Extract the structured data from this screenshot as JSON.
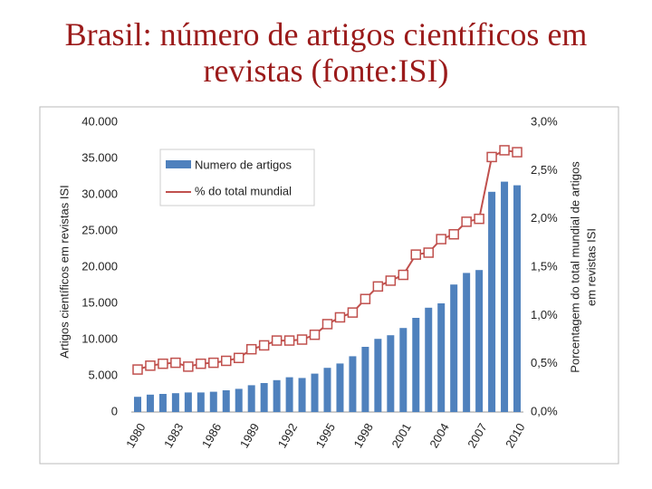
{
  "chart_data": {
    "type": "bar",
    "title": "Brasil: número de artigos científicos em revistas (fonte:ISI)",
    "ylabel": "Artigos científicos em revistas ISI",
    "y2label": [
      "Porcentagem do total mundial de artigos",
      "em revistas ISI"
    ],
    "categories": [
      "1980",
      null,
      null,
      "1983",
      null,
      null,
      "1986",
      null,
      null,
      "1989",
      null,
      null,
      "1992",
      null,
      null,
      "1995",
      null,
      null,
      "1998",
      null,
      null,
      "2001",
      null,
      null,
      "2004",
      null,
      null,
      "2007",
      null,
      null,
      "2010"
    ],
    "series": [
      {
        "name": "Numero de artigos",
        "type": "bar",
        "color": "#4f81bd",
        "values": [
          2100,
          2400,
          2500,
          2600,
          2700,
          2700,
          2800,
          3000,
          3200,
          3700,
          4000,
          4400,
          4800,
          4700,
          5300,
          6100,
          6700,
          7700,
          9000,
          10100,
          10600,
          11600,
          13000,
          14400,
          15000,
          17600,
          19200,
          19600,
          30400,
          31800,
          31300
        ]
      },
      {
        "name": "% do total mundial",
        "type": "line",
        "axis": "y2",
        "color": "#c0504d",
        "values": [
          0.44,
          0.48,
          0.5,
          0.51,
          0.47,
          0.5,
          0.51,
          0.53,
          0.56,
          0.65,
          0.69,
          0.74,
          0.74,
          0.75,
          0.8,
          0.91,
          0.98,
          1.03,
          1.17,
          1.3,
          1.36,
          1.42,
          1.63,
          1.65,
          1.79,
          1.84,
          1.97,
          2.0,
          2.64,
          2.71,
          2.69
        ]
      }
    ],
    "ylim": [
      0,
      40000
    ],
    "yticks": [
      0,
      {
        "value": 5000,
        "label": "5.000"
      },
      {
        "value": 10000,
        "label": "10.000"
      },
      {
        "value": 15000,
        "label": "15.000"
      },
      {
        "value": 20000,
        "label": "20.000"
      },
      {
        "value": 25000,
        "label": "25.000"
      },
      {
        "value": 30000,
        "label": "30.000"
      },
      {
        "value": 35000,
        "label": "35.000"
      },
      {
        "value": 40000,
        "label": "40.000"
      }
    ],
    "y2lim": [
      0,
      3
    ],
    "y2ticks": [
      {
        "value": 0,
        "label": "0,0%"
      },
      {
        "value": 0.5,
        "label": "0,5%"
      },
      {
        "value": 1,
        "label": "1,0%"
      },
      {
        "value": 1.5,
        "label": "1,5%"
      },
      {
        "value": 2,
        "label": "2,0%"
      },
      {
        "value": 2.5,
        "label": "2,5%"
      },
      {
        "value": 3,
        "label": "3,0%"
      }
    ],
    "grid": false,
    "legend": "upper left"
  }
}
